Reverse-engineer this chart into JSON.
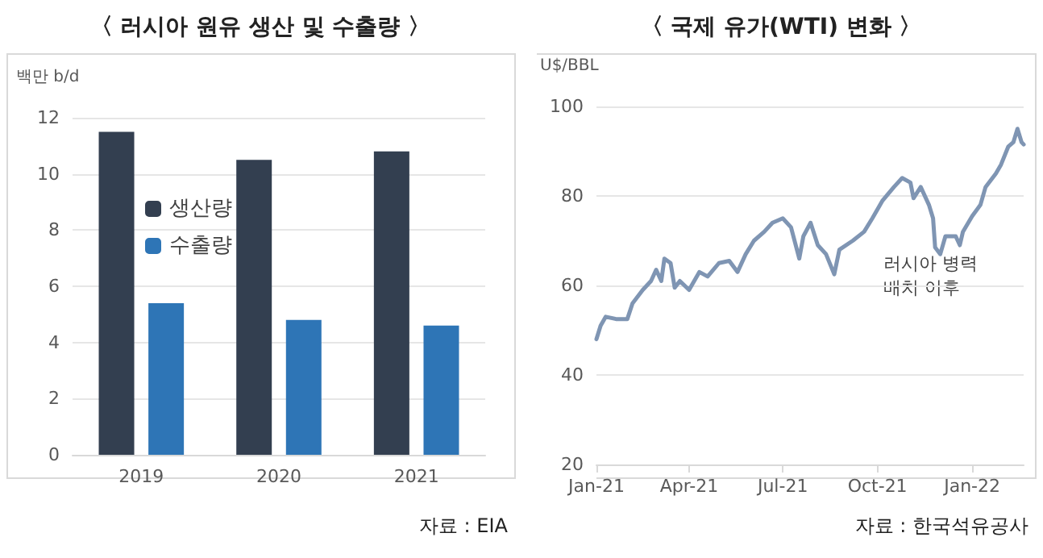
{
  "chart_data": [
    {
      "type": "bar",
      "title": "〈 러시아 원유 생산 및 수출량 〉",
      "ylabel": "백만 b/d",
      "categories": [
        "2019",
        "2020",
        "2021"
      ],
      "series": [
        {
          "name": "생산량",
          "color": "#333f50",
          "values": [
            11.5,
            10.5,
            10.8
          ]
        },
        {
          "name": "수출량",
          "color": "#2e75b6",
          "values": [
            5.4,
            4.8,
            4.6
          ]
        }
      ],
      "ylim": [
        0,
        12
      ],
      "yticks": [
        0,
        2,
        4,
        6,
        8,
        10,
        12
      ],
      "grid": "y",
      "legend": "left",
      "annotations": [
        "자료 : EIA"
      ]
    },
    {
      "type": "line",
      "title": "〈 국제 유가(WTI) 변화 〉",
      "ylabel": "U$/BBL",
      "x": [
        "2021-01-01",
        "2021-01-05",
        "2021-01-10",
        "2021-01-20",
        "2021-01-31",
        "2021-02-05",
        "2021-02-15",
        "2021-02-23",
        "2021-02-28",
        "2021-03-05",
        "2021-03-08",
        "2021-03-14",
        "2021-03-18",
        "2021-03-23",
        "2021-04-01",
        "2021-04-11",
        "2021-04-19",
        "2021-04-30",
        "2021-05-10",
        "2021-05-18",
        "2021-05-26",
        "2021-06-03",
        "2021-06-13",
        "2021-06-21",
        "2021-07-01",
        "2021-07-09",
        "2021-07-17",
        "2021-07-21",
        "2021-07-28",
        "2021-08-04",
        "2021-08-12",
        "2021-08-20",
        "2021-08-25",
        "2021-09-07",
        "2021-09-18",
        "2021-09-26",
        "2021-10-06",
        "2021-10-17",
        "2021-10-25",
        "2021-11-02",
        "2021-11-05",
        "2021-11-12",
        "2021-11-20",
        "2021-11-24",
        "2021-11-26",
        "2021-12-01",
        "2021-12-06",
        "2021-12-16",
        "2021-12-20",
        "2021-12-23",
        "2022-01-01",
        "2022-01-09",
        "2022-01-14",
        "2022-01-24",
        "2022-01-29",
        "2022-02-05",
        "2022-02-10",
        "2022-02-14",
        "2022-02-18",
        "2022-02-20"
      ],
      "series": [
        {
          "color": "#7f95b3",
          "values": [
            48,
            51,
            53,
            52.5,
            52.5,
            56,
            59,
            61,
            63.5,
            61,
            66,
            65,
            59.5,
            61,
            59,
            63,
            62,
            65,
            65.5,
            63,
            67,
            70,
            72,
            74,
            75,
            73,
            66,
            71,
            74,
            69,
            67,
            62.5,
            68,
            70,
            72,
            75,
            79,
            82,
            84,
            83,
            79.5,
            82,
            78,
            75,
            68.5,
            67,
            71,
            71,
            69,
            72,
            75.5,
            78,
            82,
            85,
            87,
            91,
            92,
            95,
            92,
            91.5
          ]
        }
      ],
      "xlim": [
        "2021-01-01",
        "2022-02-20"
      ],
      "xticks": [
        {
          "value": "2021-01-01",
          "label": "Jan-21"
        },
        {
          "value": "2021-04-01",
          "label": "Apr-21"
        },
        {
          "value": "2021-07-01",
          "label": "Jul-21"
        },
        {
          "value": "2021-10-01",
          "label": "Oct-21"
        },
        {
          "value": "2022-01-01",
          "label": "Jan-22"
        }
      ],
      "ylim": [
        20,
        100
      ],
      "yticks": [
        20,
        40,
        60,
        80,
        100
      ],
      "grid": "y",
      "marker": "none",
      "line_style": "solid",
      "annotations": [
        "러시아 병력 배치 이후",
        "자료 : 한국석유공사"
      ]
    }
  ]
}
